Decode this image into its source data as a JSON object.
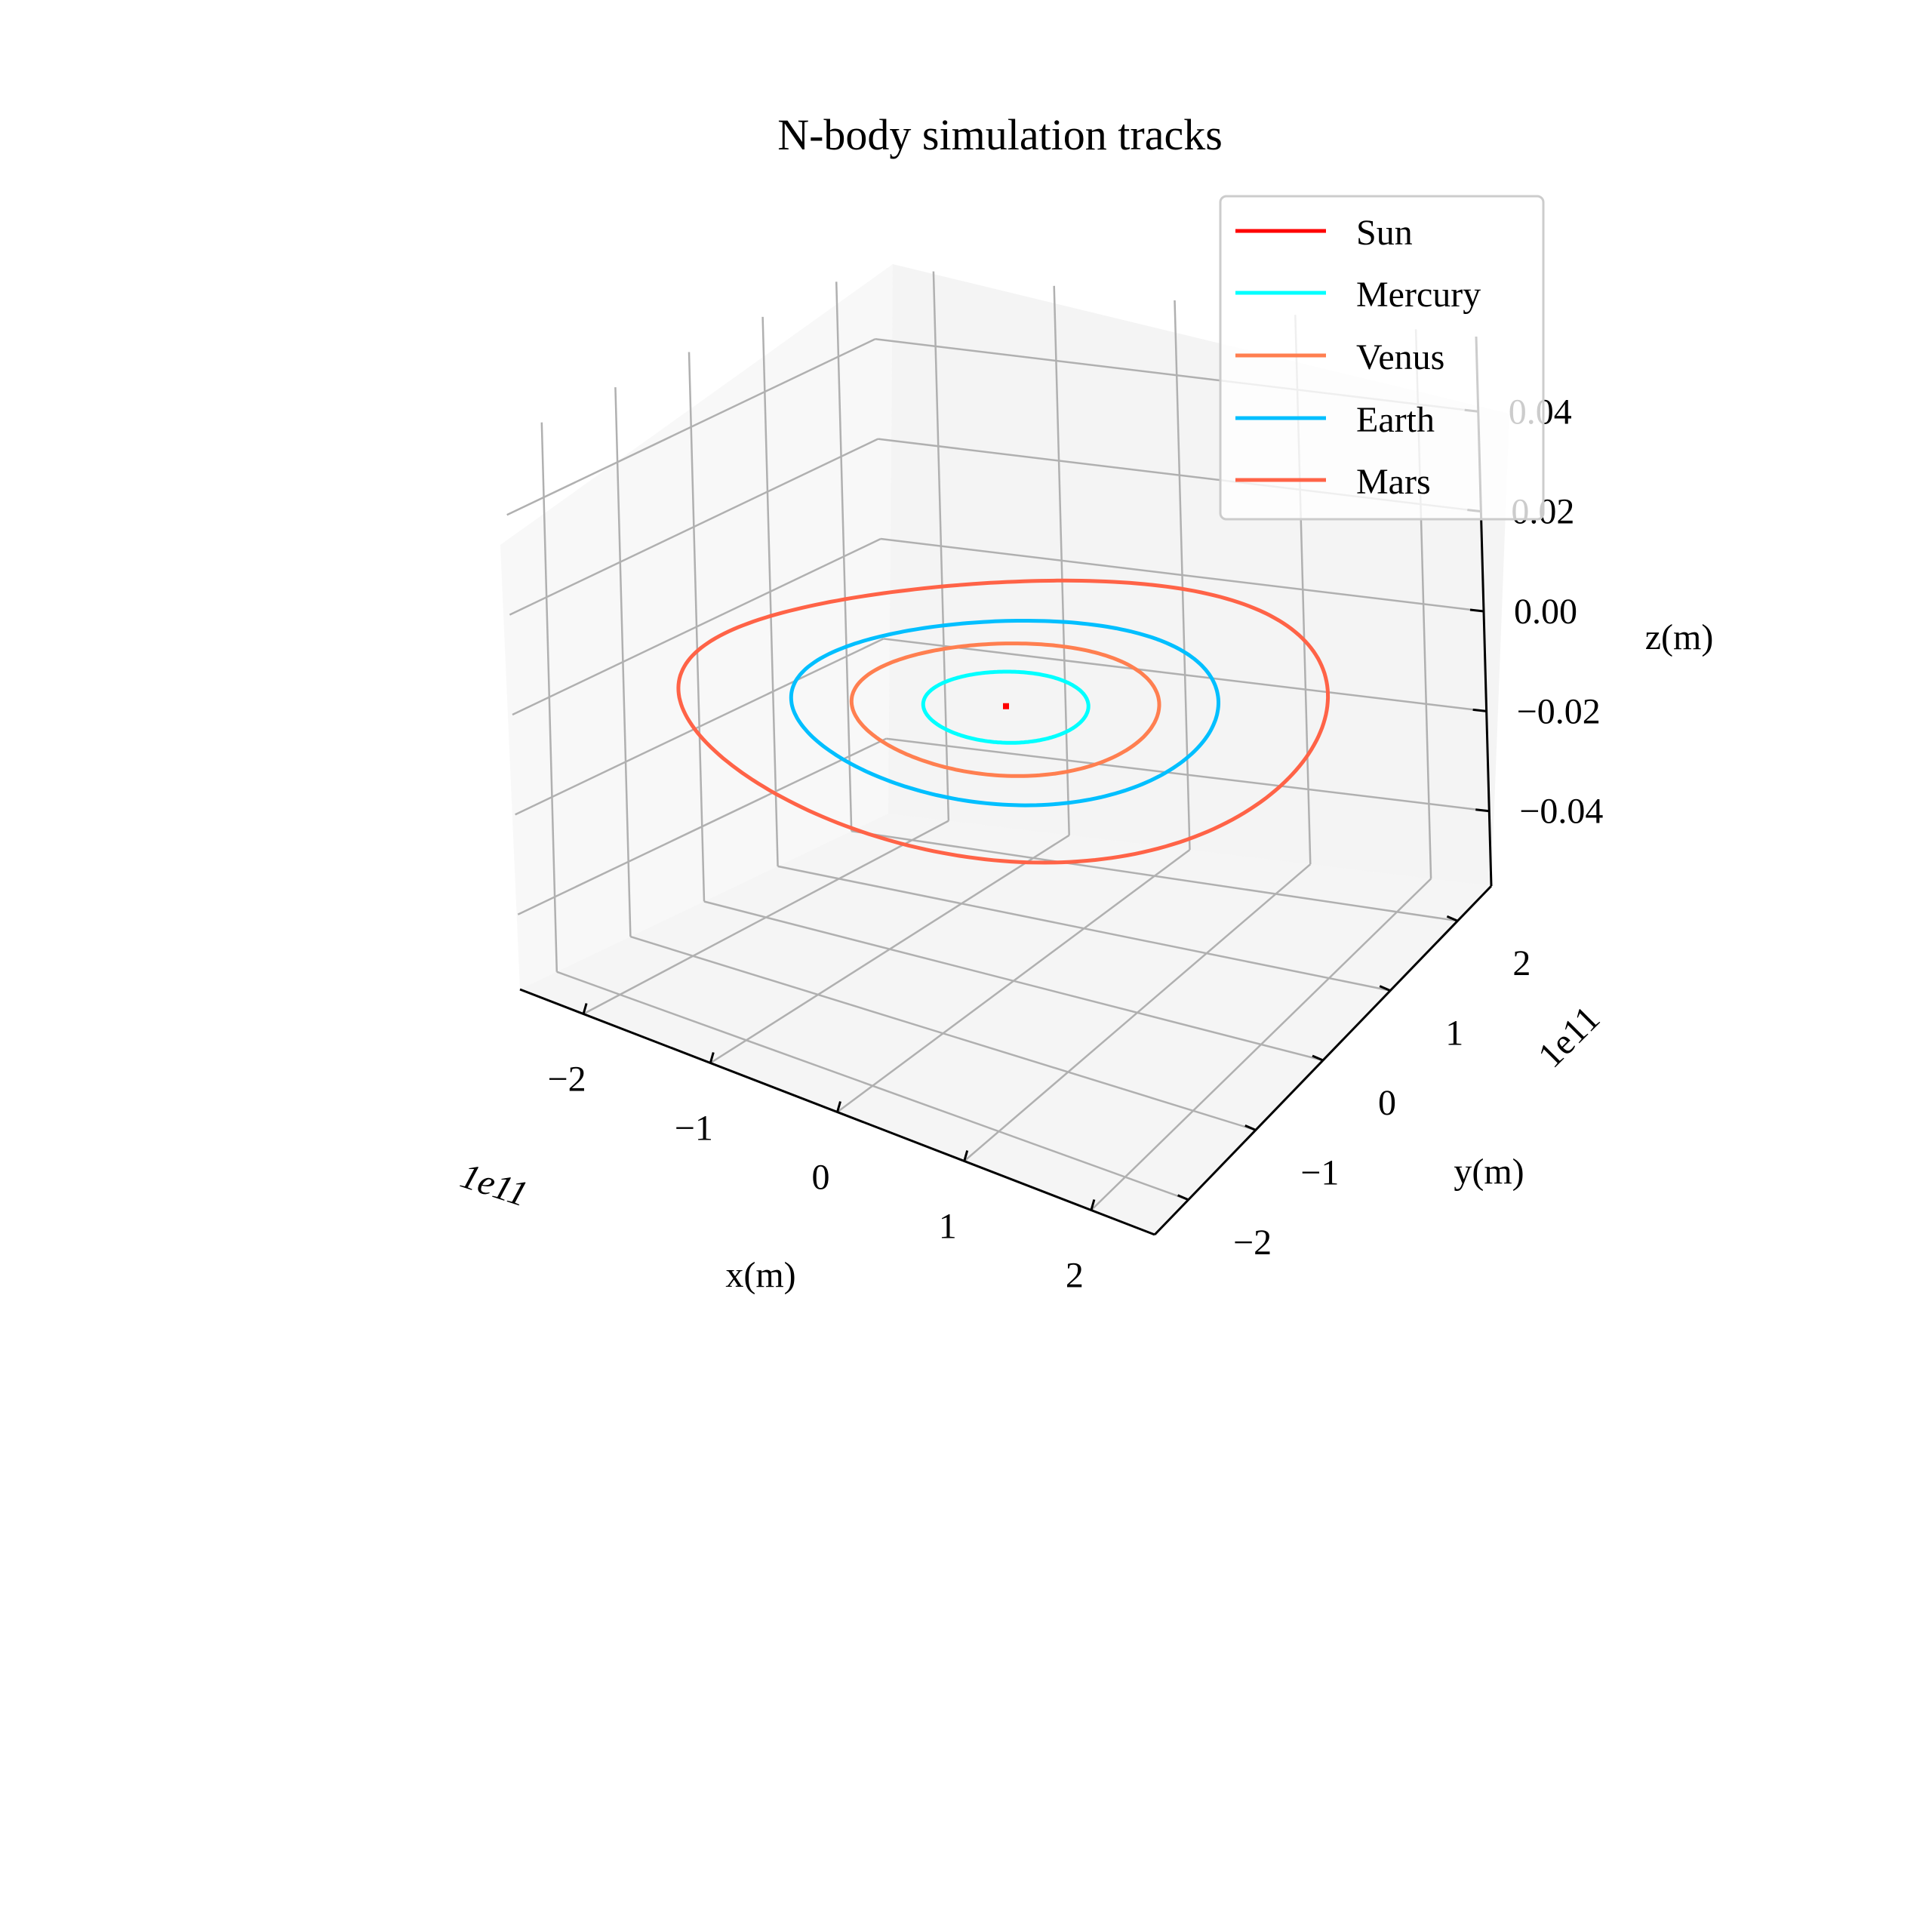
{
  "chart_data": {
    "type": "line",
    "projection": "3d",
    "title": "N-body simulation tracks",
    "xlabel": "x(m)",
    "ylabel": "y(m)",
    "zlabel": "z(m)",
    "x_offset_text": "1e11",
    "y_offset_text": "1e11",
    "xlim": [
      -2.5,
      2.5
    ],
    "ylim": [
      -2.5,
      2.5
    ],
    "zlim": [
      -0.055,
      0.055
    ],
    "x_ticks": [
      -2,
      -1,
      0,
      1,
      2
    ],
    "y_ticks": [
      -2,
      -1,
      0,
      1,
      2
    ],
    "z_ticks": [
      -0.04,
      -0.02,
      0.0,
      0.02,
      0.04
    ],
    "x_tick_labels": [
      "−2",
      "−1",
      "0",
      "1",
      "2"
    ],
    "y_tick_labels": [
      "−2",
      "−1",
      "0",
      "1",
      "2"
    ],
    "z_tick_labels": [
      "−0.04",
      "−0.02",
      "0.00",
      "0.02",
      "0.04"
    ],
    "grid": true,
    "legend_position": "top-right",
    "series": [
      {
        "name": "Sun",
        "color": "#ff0000",
        "orbit_radius": 0.0
      },
      {
        "name": "Mercury",
        "color": "#00ffff",
        "orbit_radius": 0.58
      },
      {
        "name": "Venus",
        "color": "#ff7f50",
        "orbit_radius": 1.08
      },
      {
        "name": "Earth",
        "color": "#00bfff",
        "orbit_radius": 1.5
      },
      {
        "name": "Mars",
        "color": "#ff6347",
        "orbit_radius": 2.28
      }
    ]
  }
}
